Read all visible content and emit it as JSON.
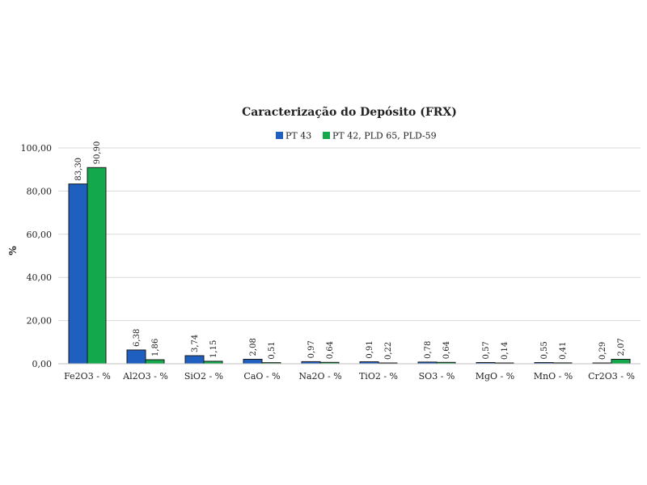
{
  "chart_data": {
    "type": "bar",
    "title": "Caracterização do Depósito (FRX)",
    "xlabel": "",
    "ylabel": "%",
    "ylim": [
      0,
      100
    ],
    "yticks": [
      "0,00",
      "20,00",
      "40,00",
      "60,00",
      "80,00",
      "100,00"
    ],
    "grid": true,
    "legend_position": "top",
    "categories": [
      "Fe2O3 - %",
      "Al2O3 - %",
      "SiO2 - %",
      "CaO - %",
      "Na2O - %",
      "TiO2 - %",
      "SO3 - %",
      "MgO - %",
      "MnO - %",
      "Cr2O3 - %"
    ],
    "series": [
      {
        "name": "PT 43",
        "color": "#1f5fbf",
        "values": [
          83.3,
          6.38,
          3.74,
          2.08,
          0.97,
          0.91,
          0.78,
          0.57,
          0.55,
          0.29
        ],
        "labels": [
          "83,30",
          "6,38",
          "3,74",
          "2,08",
          "0,97",
          "0,91",
          "0,78",
          "0,57",
          "0,55",
          "0,29"
        ]
      },
      {
        "name": "PT 42, PLD 65, PLD-59",
        "color": "#12a84b",
        "values": [
          90.9,
          1.86,
          1.15,
          0.51,
          0.64,
          0.22,
          0.64,
          0.14,
          0.41,
          2.07
        ],
        "labels": [
          "90,90",
          "1,86",
          "1,15",
          "0,51",
          "0,64",
          "0,22",
          "0,64",
          "0,14",
          "0,41",
          "2,07"
        ]
      }
    ]
  }
}
